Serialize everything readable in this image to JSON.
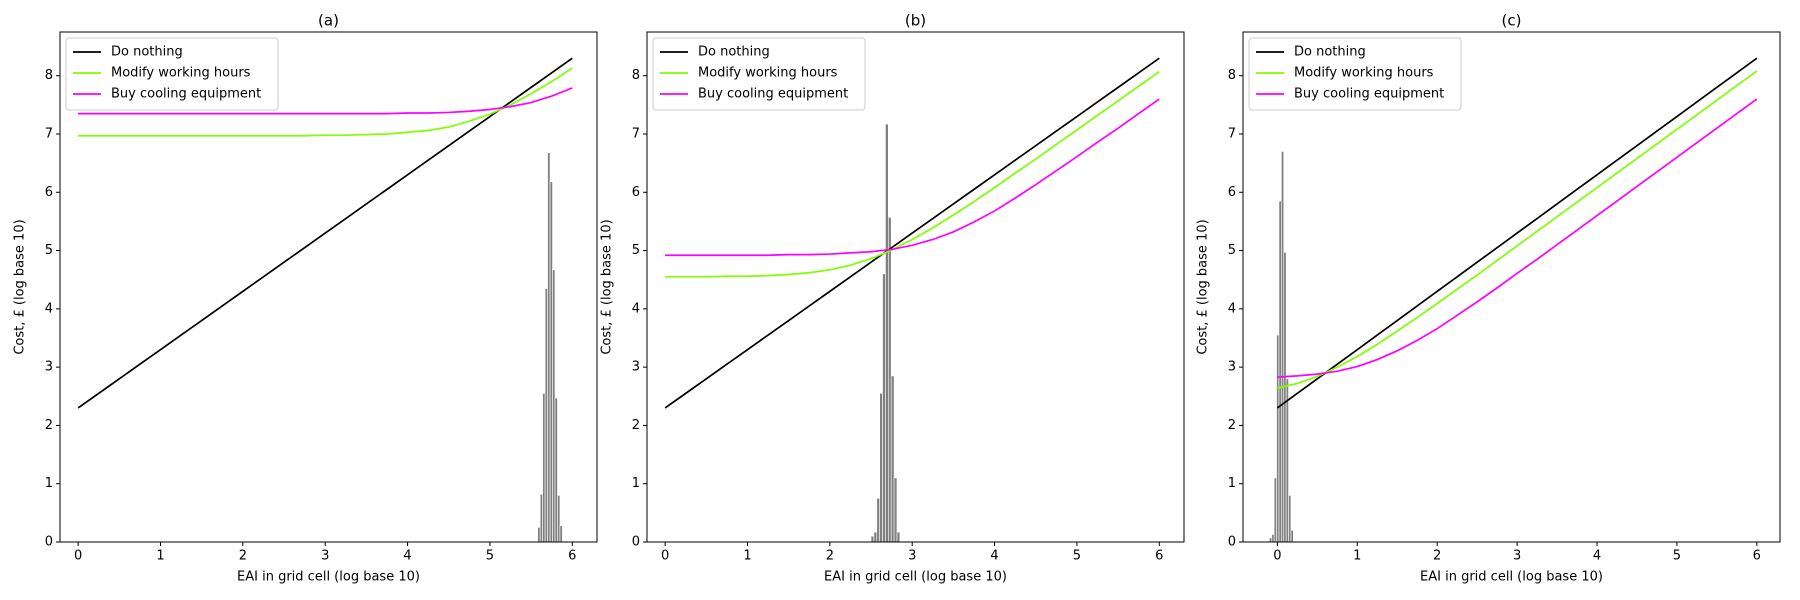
{
  "chart_data": [
    {
      "type": "line",
      "title": "(a)",
      "x_label": "EAI in grid cell (log base 10)",
      "y_label": "Cost, £ (log base 10)",
      "xlim": [
        -0.22,
        6.3
      ],
      "ylim": [
        0,
        8.75
      ],
      "xticks": [
        0,
        1,
        2,
        3,
        4,
        5,
        6
      ],
      "yticks": [
        0,
        1,
        2,
        3,
        4,
        5,
        6,
        7,
        8
      ],
      "legend": "upper left",
      "x": [
        0,
        0.25,
        0.5,
        0.75,
        1,
        1.25,
        1.5,
        1.75,
        2,
        2.25,
        2.5,
        2.75,
        3,
        3.25,
        3.5,
        3.75,
        4,
        4.25,
        4.5,
        4.75,
        5,
        5.25,
        5.5,
        5.75,
        6
      ],
      "series": [
        {
          "name": "Do nothing",
          "color": "#000000",
          "values": [
            2.3,
            2.55,
            2.8,
            3.05,
            3.3,
            3.55,
            3.8,
            4.05,
            4.3,
            4.55,
            4.8,
            5.05,
            5.3,
            5.55,
            5.8,
            6.05,
            6.3,
            6.55,
            6.8,
            7.05,
            7.3,
            7.55,
            7.8,
            8.05,
            8.3
          ]
        },
        {
          "name": "Modify working hours",
          "color": "#7fff00",
          "values": [
            6.97,
            6.97,
            6.97,
            6.97,
            6.97,
            6.97,
            6.97,
            6.97,
            6.97,
            6.97,
            6.97,
            6.97,
            6.98,
            6.98,
            6.99,
            7.0,
            7.03,
            7.06,
            7.12,
            7.22,
            7.34,
            7.5,
            7.69,
            7.9,
            8.13
          ]
        },
        {
          "name": "Buy cooling equipment",
          "color": "#ff00ff",
          "values": [
            7.35,
            7.35,
            7.35,
            7.35,
            7.35,
            7.35,
            7.35,
            7.35,
            7.35,
            7.35,
            7.35,
            7.35,
            7.35,
            7.35,
            7.35,
            7.35,
            7.36,
            7.36,
            7.37,
            7.39,
            7.42,
            7.47,
            7.54,
            7.65,
            7.79
          ]
        }
      ],
      "histogram": {
        "color": "#808080",
        "bins": [
          5.58,
          5.61,
          5.64,
          5.67,
          5.7,
          5.73,
          5.76,
          5.79,
          5.82,
          5.85,
          5.88
        ],
        "counts": [
          0.25,
          0.82,
          2.55,
          4.35,
          6.68,
          6.18,
          4.67,
          2.47,
          0.8,
          0.28
        ]
      }
    },
    {
      "type": "line",
      "title": "(b)",
      "x_label": "EAI in grid cell (log base 10)",
      "y_label": "Cost, £ (log base 10)",
      "xlim": [
        -0.22,
        6.3
      ],
      "ylim": [
        0,
        8.75
      ],
      "xticks": [
        0,
        1,
        2,
        3,
        4,
        5,
        6
      ],
      "yticks": [
        0,
        1,
        2,
        3,
        4,
        5,
        6,
        7,
        8
      ],
      "legend": "upper left",
      "x": [
        0,
        0.25,
        0.5,
        0.75,
        1,
        1.25,
        1.5,
        1.75,
        2,
        2.25,
        2.5,
        2.75,
        3,
        3.25,
        3.5,
        3.75,
        4,
        4.25,
        4.5,
        4.75,
        5,
        5.25,
        5.5,
        5.75,
        6
      ],
      "series": [
        {
          "name": "Do nothing",
          "color": "#000000",
          "values": [
            2.3,
            2.55,
            2.8,
            3.05,
            3.3,
            3.55,
            3.8,
            4.05,
            4.3,
            4.55,
            4.8,
            5.05,
            5.3,
            5.55,
            5.8,
            6.05,
            6.3,
            6.55,
            6.8,
            7.05,
            7.3,
            7.55,
            7.8,
            8.05,
            8.3
          ]
        },
        {
          "name": "Modify working hours",
          "color": "#7fff00",
          "values": [
            4.55,
            4.55,
            4.55,
            4.56,
            4.56,
            4.57,
            4.59,
            4.62,
            4.67,
            4.75,
            4.86,
            5.01,
            5.19,
            5.39,
            5.61,
            5.84,
            6.08,
            6.33,
            6.57,
            6.82,
            7.07,
            7.32,
            7.57,
            7.82,
            8.07
          ]
        },
        {
          "name": "Buy cooling equipment",
          "color": "#ff00ff",
          "values": [
            4.92,
            4.92,
            4.92,
            4.92,
            4.92,
            4.92,
            4.93,
            4.93,
            4.94,
            4.96,
            4.98,
            5.02,
            5.09,
            5.19,
            5.32,
            5.49,
            5.68,
            5.9,
            6.13,
            6.37,
            6.61,
            6.86,
            7.1,
            7.35,
            7.6
          ]
        }
      ],
      "histogram": {
        "color": "#808080",
        "bins": [
          2.5,
          2.535,
          2.57,
          2.605,
          2.64,
          2.675,
          2.71,
          2.745,
          2.78,
          2.815,
          2.85
        ],
        "counts": [
          0.1,
          0.17,
          0.75,
          2.55,
          4.6,
          7.17,
          5.57,
          2.85,
          1.1,
          0.17
        ]
      }
    },
    {
      "type": "line",
      "title": "(c)",
      "x_label": "EAI in grid cell (log base 10)",
      "y_label": "Cost, £ (log base 10)",
      "xlim": [
        -0.43,
        6.29
      ],
      "ylim": [
        0,
        8.75
      ],
      "xticks": [
        0,
        1,
        2,
        3,
        4,
        5,
        6
      ],
      "yticks": [
        0,
        1,
        2,
        3,
        4,
        5,
        6,
        7,
        8
      ],
      "legend": "upper left",
      "x": [
        0,
        0.25,
        0.5,
        0.75,
        1,
        1.25,
        1.5,
        1.75,
        2,
        2.25,
        2.5,
        2.75,
        3,
        3.25,
        3.5,
        3.75,
        4,
        4.25,
        4.5,
        4.75,
        5,
        5.25,
        5.5,
        5.75,
        6
      ],
      "series": [
        {
          "name": "Do nothing",
          "color": "#000000",
          "values": [
            2.3,
            2.55,
            2.8,
            3.05,
            3.3,
            3.55,
            3.8,
            4.05,
            4.3,
            4.55,
            4.8,
            5.05,
            5.3,
            5.55,
            5.8,
            6.05,
            6.3,
            6.55,
            6.8,
            7.05,
            7.3,
            7.55,
            7.8,
            8.05,
            8.3
          ]
        },
        {
          "name": "Modify working hours",
          "color": "#7fff00",
          "values": [
            2.64,
            2.72,
            2.84,
            3.0,
            3.18,
            3.39,
            3.62,
            3.85,
            4.09,
            4.34,
            4.58,
            4.83,
            5.08,
            5.33,
            5.58,
            5.83,
            6.08,
            6.33,
            6.58,
            6.83,
            7.08,
            7.33,
            7.58,
            7.83,
            8.08
          ]
        },
        {
          "name": "Buy cooling equipment",
          "color": "#ff00ff",
          "values": [
            2.83,
            2.85,
            2.88,
            2.93,
            3.01,
            3.13,
            3.28,
            3.46,
            3.66,
            3.89,
            4.12,
            4.36,
            4.61,
            4.85,
            5.1,
            5.35,
            5.6,
            5.85,
            6.1,
            6.35,
            6.6,
            6.85,
            7.1,
            7.35,
            7.6
          ]
        }
      ],
      "histogram": {
        "color": "#808080",
        "bins": [
          -0.1,
          -0.07,
          -0.04,
          -0.01,
          0.02,
          0.05,
          0.08,
          0.11,
          0.14,
          0.17,
          0.2
        ],
        "counts": [
          0.07,
          0.13,
          1.1,
          3.55,
          5.85,
          6.7,
          4.97,
          2.8,
          0.8,
          0.2
        ]
      }
    }
  ]
}
